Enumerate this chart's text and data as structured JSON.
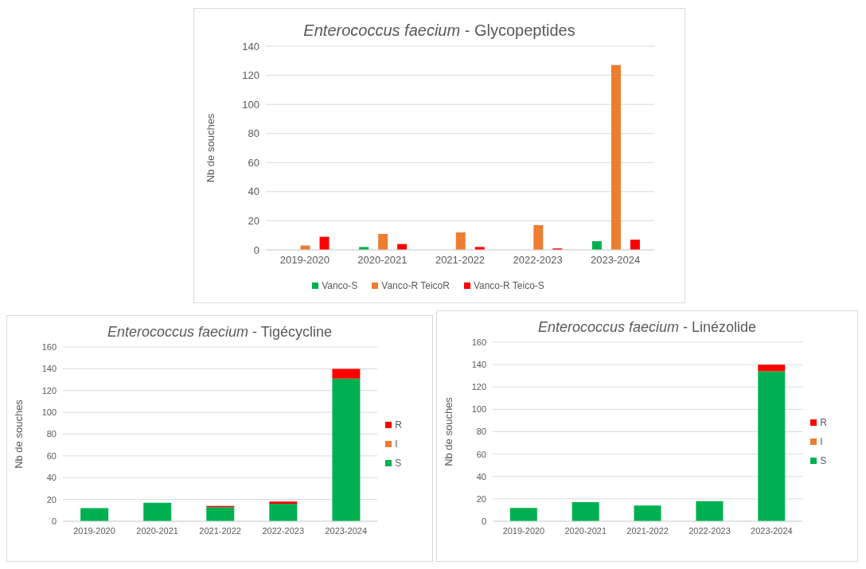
{
  "chart_data": [
    {
      "type": "bar",
      "title": "Enterococcus faecium - Glycopeptides",
      "ylabel": "Nb de souches",
      "categories": [
        "2019-2020",
        "2020-2021",
        "2021-2022",
        "2022-2023",
        "2023-2024"
      ],
      "series": [
        {
          "name": "Vanco-S",
          "color": "#00b050",
          "values": [
            0,
            2,
            0,
            0,
            6
          ]
        },
        {
          "name": "Vanco-R TeicoR",
          "color": "#ed7d31",
          "values": [
            3,
            11,
            12,
            17,
            127
          ]
        },
        {
          "name": "Vanco-R Teico-S",
          "color": "#ff0000",
          "values": [
            9,
            4,
            2,
            1,
            7
          ]
        }
      ],
      "ylim": [
        0,
        140
      ],
      "yticks": [
        0,
        20,
        40,
        60,
        80,
        100,
        120,
        140
      ],
      "grid": "y",
      "legend": "bottom"
    },
    {
      "type": "bar",
      "stacked": true,
      "title": "Enterococcus faecium - Tigécycline",
      "ylabel": "Nb de souches",
      "categories": [
        "2019-2020",
        "2020-2021",
        "2021-2022",
        "2022-2023",
        "2023-2024"
      ],
      "series": [
        {
          "name": "S",
          "color": "#00b050",
          "values": [
            12,
            17,
            13,
            16,
            131
          ]
        },
        {
          "name": "I",
          "color": "#ed7d31",
          "values": [
            null,
            null,
            null,
            null,
            null
          ]
        },
        {
          "name": "R",
          "color": "#ff0000",
          "values": [
            null,
            null,
            1,
            2,
            9
          ]
        }
      ],
      "ylim": [
        0,
        160
      ],
      "yticks": [
        0,
        20,
        40,
        60,
        80,
        100,
        120,
        140,
        160
      ],
      "grid": "y",
      "legend": "right"
    },
    {
      "type": "bar",
      "stacked": true,
      "title": "Enterococcus faecium - Linézolide",
      "ylabel": "Nb de souches",
      "categories": [
        "2019-2020",
        "2020-2021",
        "2021-2022",
        "2022-2023",
        "2023-2024"
      ],
      "series": [
        {
          "name": "S",
          "color": "#00b050",
          "values": [
            12,
            17,
            14,
            18,
            134
          ]
        },
        {
          "name": "I",
          "color": "#ed7d31",
          "values": [
            null,
            null,
            null,
            null,
            null
          ]
        },
        {
          "name": "R",
          "color": "#ff0000",
          "values": [
            null,
            null,
            null,
            null,
            6
          ]
        }
      ],
      "ylim": [
        0,
        160
      ],
      "yticks": [
        0,
        20,
        40,
        60,
        80,
        100,
        120,
        140,
        160
      ],
      "grid": "y",
      "legend": "right"
    }
  ]
}
